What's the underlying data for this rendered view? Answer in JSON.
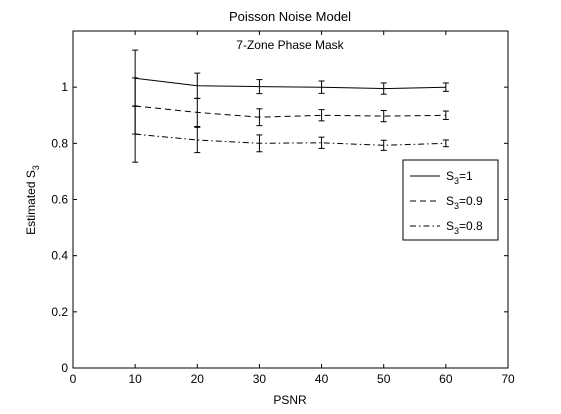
{
  "chart_data": {
    "type": "line",
    "title": "Poisson Noise Model",
    "annotation": "7-Zone Phase Mask",
    "xlabel": "PSNR",
    "ylabel_main": "Estimated S",
    "ylabel_sub": "3",
    "xlim": [
      0,
      70
    ],
    "ylim": [
      0,
      1.2
    ],
    "xticks": [
      0,
      10,
      20,
      30,
      40,
      50,
      60,
      70
    ],
    "yticks": [
      0,
      0.2,
      0.4,
      0.6,
      0.8,
      1
    ],
    "xtick_labels": [
      "0",
      "10",
      "20",
      "30",
      "40",
      "50",
      "60",
      "70"
    ],
    "ytick_labels": [
      "0",
      "0.2",
      "0.4",
      "0.6",
      "0.8",
      "1"
    ],
    "grid": false,
    "legend_placement": "right",
    "x": [
      10,
      20,
      30,
      40,
      50,
      60
    ],
    "series": [
      {
        "name_main": "S",
        "name_sub": "3",
        "name_tail": "=1",
        "style": "solid",
        "values": [
          1.032,
          1.005,
          1.002,
          1.0,
          0.995,
          1.0
        ],
        "errors": [
          0.1,
          0.045,
          0.025,
          0.022,
          0.02,
          0.015
        ]
      },
      {
        "name_main": "S",
        "name_sub": "3",
        "name_tail": "=0.9",
        "style": "dashed",
        "values": [
          0.933,
          0.91,
          0.893,
          0.9,
          0.897,
          0.9
        ],
        "errors": [
          0.1,
          0.05,
          0.03,
          0.02,
          0.02,
          0.015
        ]
      },
      {
        "name_main": "S",
        "name_sub": "3",
        "name_tail": "=0.8",
        "style": "dashdot",
        "values": [
          0.833,
          0.812,
          0.8,
          0.802,
          0.793,
          0.8
        ],
        "errors": [
          0.1,
          0.045,
          0.03,
          0.02,
          0.018,
          0.012
        ]
      }
    ]
  }
}
